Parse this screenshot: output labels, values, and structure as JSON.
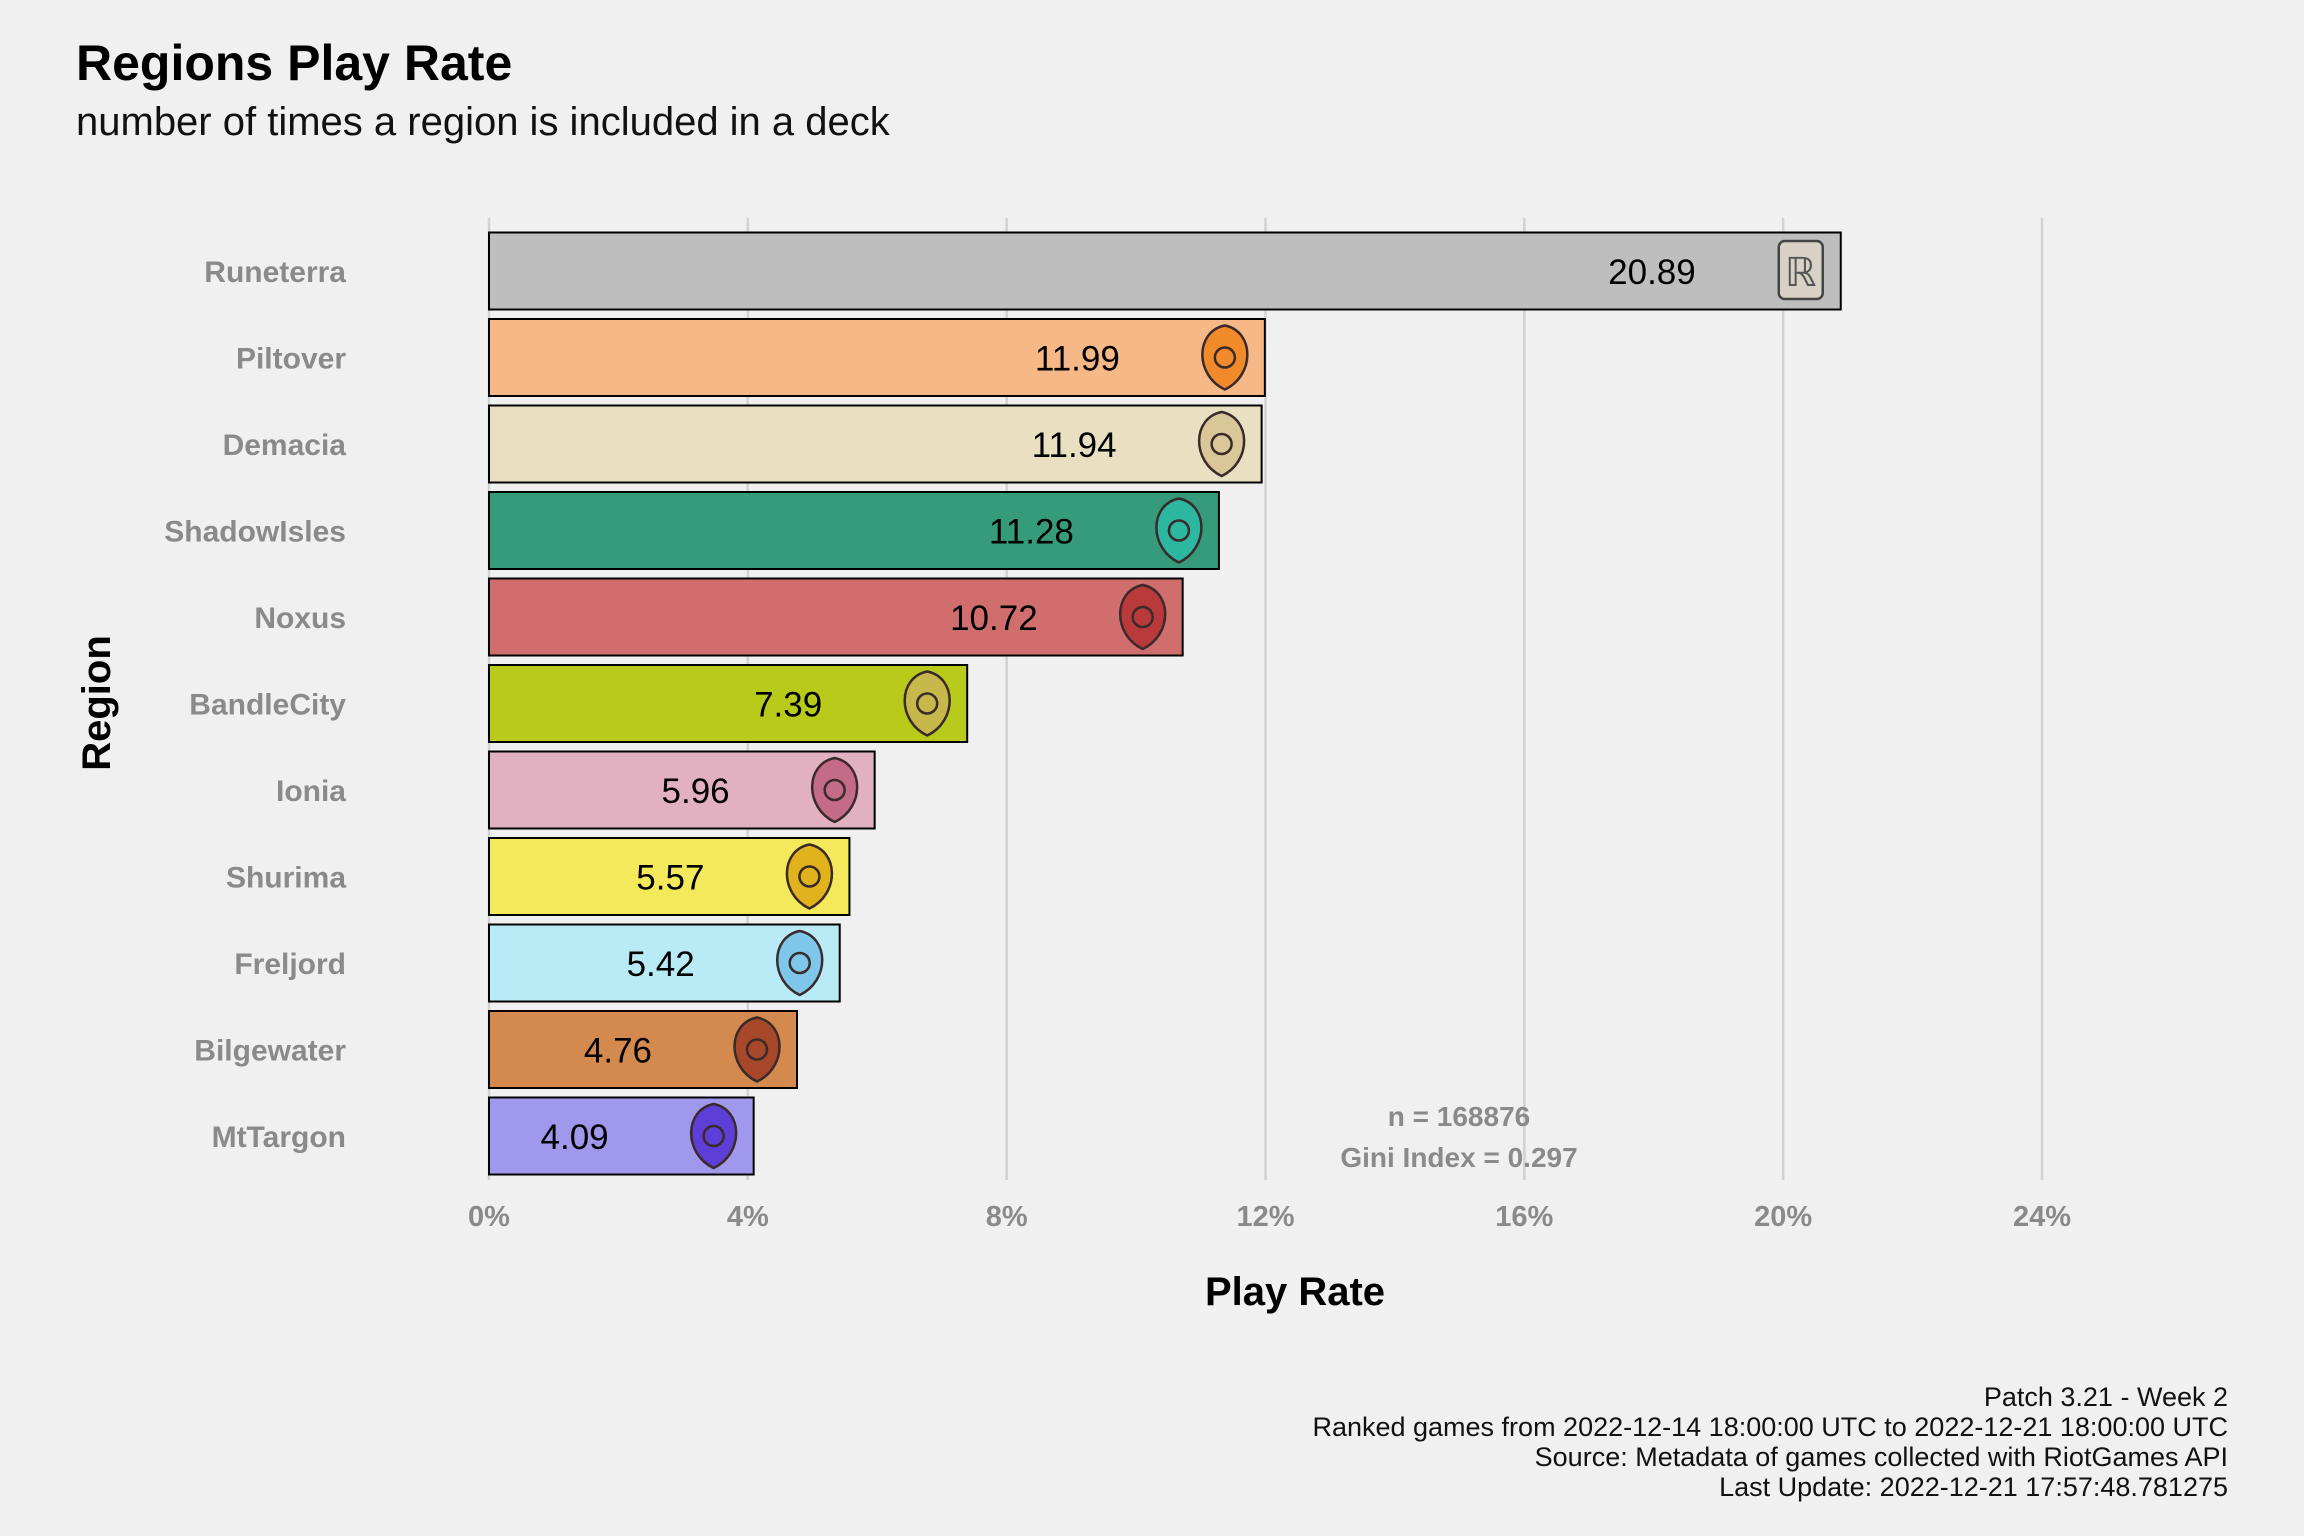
{
  "chart_data": {
    "type": "bar",
    "orientation": "horizontal",
    "title": "Regions Play Rate",
    "subtitle": "number of times a region is included in a deck",
    "xlabel": "Play Rate",
    "ylabel": "Region",
    "xlim": [
      0,
      24
    ],
    "x_ticks": [
      "0%",
      "4%",
      "8%",
      "12%",
      "16%",
      "20%",
      "24%"
    ],
    "x_tick_values": [
      0,
      4,
      8,
      12,
      16,
      20,
      24
    ],
    "grid": "vertical major lines",
    "categories": [
      "Runeterra",
      "Piltover",
      "Demacia",
      "ShadowIsles",
      "Noxus",
      "BandleCity",
      "Ionia",
      "Shurima",
      "Freljord",
      "Bilgewater",
      "MtTargon"
    ],
    "values": [
      20.89,
      11.99,
      11.94,
      11.28,
      10.72,
      7.39,
      5.96,
      5.57,
      5.42,
      4.76,
      4.09
    ],
    "value_labels": [
      "20.89",
      "11.99",
      "11.94",
      "11.28",
      "10.72",
      "7.39",
      "5.96",
      "5.57",
      "5.42",
      "4.76",
      "4.09"
    ],
    "colors": [
      "#bebebe",
      "#f5b886",
      "#e9dfc1",
      "#359b7b",
      "#d06e6d",
      "#b9cb1a",
      "#e2b1c1",
      "#f4e95a",
      "#b9ebf7",
      "#d48a4f",
      "#a098ed"
    ],
    "icons": [
      "runeterra-icon",
      "piltover-icon",
      "demacia-icon",
      "shadowisles-icon",
      "noxus-icon",
      "bandlecity-icon",
      "ionia-icon",
      "shurima-icon",
      "freljord-icon",
      "bilgewater-icon",
      "mttargon-icon"
    ],
    "icon_colors": [
      "#d8d2c6",
      "#f08a2a",
      "#d9c79a",
      "#2bb7a0",
      "#b83a3a",
      "#c6b84a",
      "#c56b8a",
      "#e0b21c",
      "#7fc7ea",
      "#a8482a",
      "#5d3fd8"
    ],
    "annotation": [
      "n = 168876",
      "Gini Index = 0.297"
    ],
    "caption": [
      "Patch 3.21 - Week 2",
      "Ranked games from 2022-12-14 18:00:00 UTC to 2022-12-21 18:00:00 UTC",
      "Source: Metadata of games collected with RiotGames API",
      "Last Update: 2022-12-21 17:57:48.781275"
    ]
  }
}
